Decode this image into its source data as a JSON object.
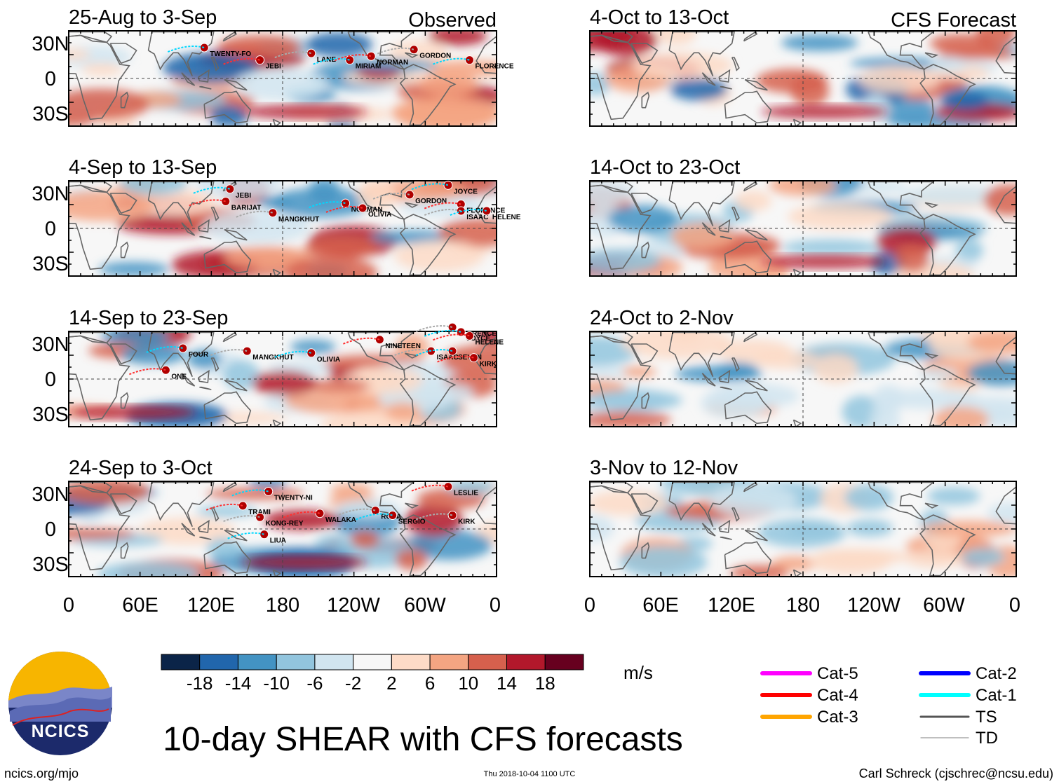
{
  "title": "10-day SHEAR with CFS forecasts",
  "footer": {
    "left": "ncics.org/mjo",
    "center": "Thu 2018-10-04 1100 UTC",
    "right": "Carl Schreck (cjschrec@ncsu.edu)"
  },
  "logo": {
    "text": "NCICS"
  },
  "colorbar": {
    "units": "m/s",
    "ticks": [
      "-18",
      "-14",
      "-10",
      "-6",
      "-2",
      "2",
      "6",
      "10",
      "14",
      "18"
    ],
    "colors": [
      "#0b2448",
      "#2166ac",
      "#4393c3",
      "#92c5de",
      "#d1e5f0",
      "#f7f7f7",
      "#fddbc7",
      "#f4a582",
      "#d6604d",
      "#b2182b",
      "#67001f"
    ]
  },
  "legend": [
    {
      "label": "Cat-5",
      "color": "#ff00ff"
    },
    {
      "label": "Cat-4",
      "color": "#ff0000"
    },
    {
      "label": "Cat-3",
      "color": "#ffa500"
    },
    {
      "label": "Cat-2",
      "color": "#0000ff"
    },
    {
      "label": "Cat-1",
      "color": "#00ffff"
    },
    {
      "label": "TS",
      "color": "#555555"
    },
    {
      "label": "TD",
      "color": "#999999"
    }
  ],
  "column_labels": {
    "observed": "Observed",
    "forecast": "CFS Forecast"
  },
  "chart_data": {
    "type": "heatmap",
    "variable": "10-day vertical wind shear anomaly",
    "units": "m/s",
    "x_ticks": [
      "0",
      "60E",
      "120E",
      "180",
      "120W",
      "60W",
      "0"
    ],
    "y_ticks": [
      "30N",
      "0",
      "30S"
    ],
    "panels": [
      {
        "period": "25-Aug to 3-Sep",
        "kind": "Observed",
        "storms": [
          "TWENTY-FO",
          "JEBI",
          "LANE",
          "MIRIAM",
          "NORMAN",
          "GORDON",
          "FLORENCE"
        ]
      },
      {
        "period": "4-Sep to 13-Sep",
        "kind": "Observed",
        "storms": [
          "JEBI",
          "BARIJAT",
          "MANGKHUT",
          "NORMAN",
          "OLIVIA",
          "GORDON",
          "JOYCE",
          "FLORENCE",
          "ISAAC",
          "HELENE"
        ]
      },
      {
        "period": "14-Sep to 23-Sep",
        "kind": "Observed",
        "storms": [
          "FOUR",
          "ONE",
          "MANGKHUT",
          "OLIVIA",
          "NINETEEN",
          "FLORENCE",
          "JOYCE",
          "HELENE",
          "ISAAC",
          "SEVEN",
          "KIRK"
        ]
      },
      {
        "period": "24-Sep to 3-Oct",
        "kind": "Observed",
        "storms": [
          "TWENTY-NI",
          "TRAMI",
          "KONG-REY",
          "LIUA",
          "WALAKA",
          "ROSA",
          "SERGIO",
          "LESLIE",
          "KIRK"
        ]
      },
      {
        "period": "4-Oct to 13-Oct",
        "kind": "CFS Forecast",
        "storms": []
      },
      {
        "period": "14-Oct to 23-Oct",
        "kind": "CFS Forecast",
        "storms": []
      },
      {
        "period": "24-Oct to 2-Nov",
        "kind": "CFS Forecast",
        "storms": []
      },
      {
        "period": "3-Nov to 12-Nov",
        "kind": "CFS Forecast",
        "storms": []
      }
    ]
  }
}
